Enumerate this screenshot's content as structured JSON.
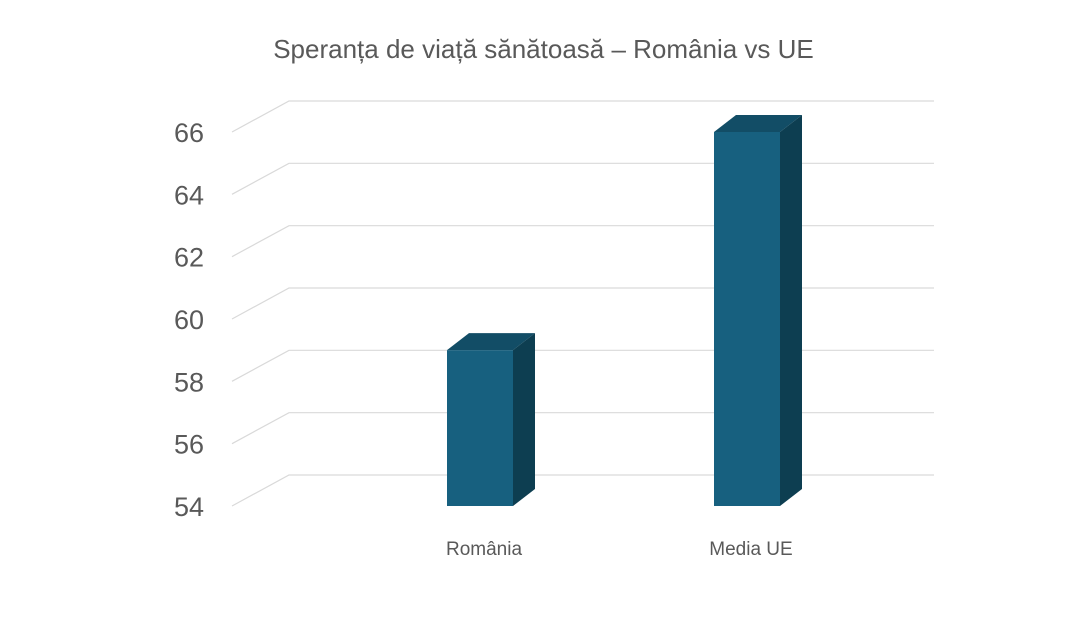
{
  "chart_data": {
    "type": "bar",
    "title": "Speranța de viață sănătoasă – România vs UE",
    "categories": [
      "România",
      "Media UE"
    ],
    "values": [
      59,
      66
    ],
    "xlabel": "",
    "ylabel": "",
    "ylim": [
      54,
      66
    ],
    "yticks": [
      "54",
      "56",
      "58",
      "60",
      "62",
      "64",
      "66"
    ],
    "grid": true,
    "style": "3d-column",
    "colors": {
      "front": "#17607f",
      "side": "#0d3e51",
      "top": "#124d66"
    }
  }
}
